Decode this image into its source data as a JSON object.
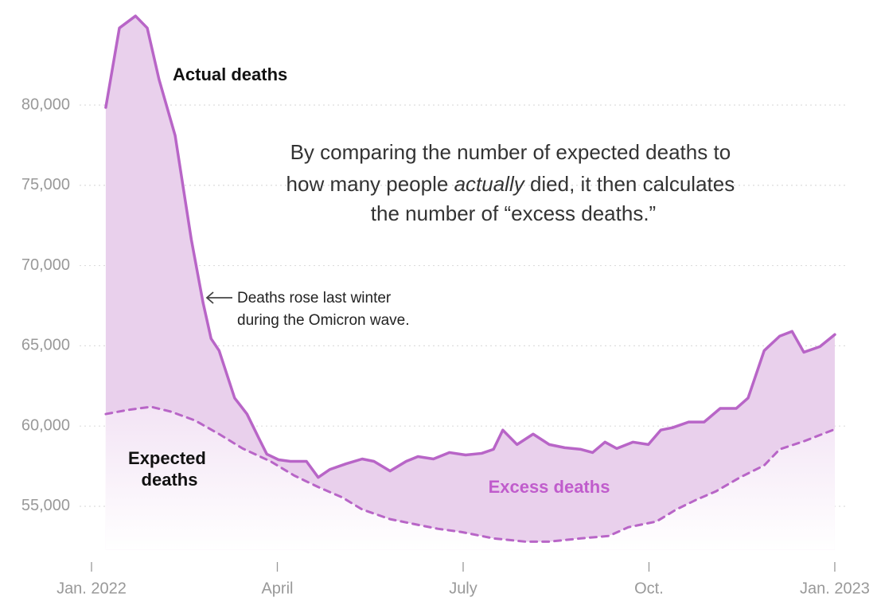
{
  "chart_data": {
    "type": "area",
    "xlim": [
      -0.3,
      12.5
    ],
    "xticks": [
      {
        "value": 0,
        "label": "Jan. 2022"
      },
      {
        "value": 3,
        "label": "April"
      },
      {
        "value": 6,
        "label": "July"
      },
      {
        "value": 9,
        "label": "Oct."
      },
      {
        "value": 12,
        "label": "Jan. 2023"
      }
    ],
    "ylim": [
      52300,
      86100
    ],
    "yticks": [
      {
        "value": 55000,
        "label": "55,000"
      },
      {
        "value": 60000,
        "label": "60,000"
      },
      {
        "value": 65000,
        "label": "65,000"
      },
      {
        "value": 70000,
        "label": "70,000"
      },
      {
        "value": 75000,
        "label": "75,000"
      },
      {
        "value": 80000,
        "label": "80,000"
      }
    ],
    "grid": true,
    "series": [
      {
        "name": "Actual deaths",
        "color": "#b865c7",
        "fill": "#e9d0ec",
        "x": [
          0.23,
          0.45,
          0.71,
          0.9,
          1.09,
          1.35,
          1.61,
          1.8,
          1.93,
          2.06,
          2.31,
          2.51,
          2.7,
          2.83,
          3.02,
          3.21,
          3.47,
          3.66,
          3.85,
          4.11,
          4.37,
          4.56,
          4.82,
          5.08,
          5.27,
          5.52,
          5.78,
          6.04,
          6.3,
          6.49,
          6.64,
          6.87,
          7.13,
          7.39,
          7.64,
          7.9,
          8.09,
          8.29,
          8.48,
          8.74,
          8.99,
          9.19,
          9.38,
          9.64,
          9.89,
          10.15,
          10.41,
          10.6,
          10.86,
          11.11,
          11.31,
          11.5,
          11.76,
          12.0
        ],
        "values": [
          79850,
          84800,
          85550,
          84800,
          81600,
          78100,
          71650,
          67700,
          65450,
          64700,
          61750,
          60750,
          59250,
          58250,
          57900,
          57800,
          57800,
          56800,
          57300,
          57650,
          57950,
          57800,
          57200,
          57800,
          58100,
          57950,
          58350,
          58200,
          58300,
          58550,
          59750,
          58850,
          59500,
          58850,
          58650,
          58550,
          58350,
          59000,
          58600,
          59000,
          58850,
          59750,
          59900,
          60250,
          60250,
          61100,
          61100,
          61750,
          64700,
          65600,
          65900,
          64600,
          64950,
          65700
        ]
      },
      {
        "name": "Expected deaths",
        "color": "#b865c7",
        "fill": "#f3e4f5",
        "dashed": true,
        "x": [
          0.23,
          0.58,
          0.96,
          1.28,
          1.67,
          2.06,
          2.44,
          2.89,
          3.28,
          3.66,
          4.05,
          4.37,
          4.82,
          5.2,
          5.59,
          5.97,
          6.49,
          7.0,
          7.39,
          7.9,
          8.35,
          8.67,
          9.12,
          9.44,
          9.76,
          10.09,
          10.47,
          10.86,
          11.11,
          11.5,
          12.0
        ],
        "values": [
          60750,
          61000,
          61200,
          60900,
          60350,
          59500,
          58600,
          57800,
          56900,
          56200,
          55550,
          54800,
          54200,
          53900,
          53600,
          53400,
          53000,
          52800,
          52800,
          53000,
          53150,
          53700,
          54050,
          54800,
          55400,
          55950,
          56800,
          57550,
          58550,
          59050,
          59800
        ]
      }
    ],
    "annotations": {
      "actual_label": "Actual deaths",
      "expected_label": [
        "Expected",
        "deaths"
      ],
      "excess_label": "Excess deaths",
      "omicron_note": [
        "Deaths rose last winter",
        "during the Omicron wave."
      ],
      "note": [
        [
          "By comparing the number of expected deaths to"
        ],
        [
          "how many people ",
          "actually",
          " died, it then calculates"
        ],
        [
          "the number of “excess deaths.”"
        ]
      ]
    }
  }
}
